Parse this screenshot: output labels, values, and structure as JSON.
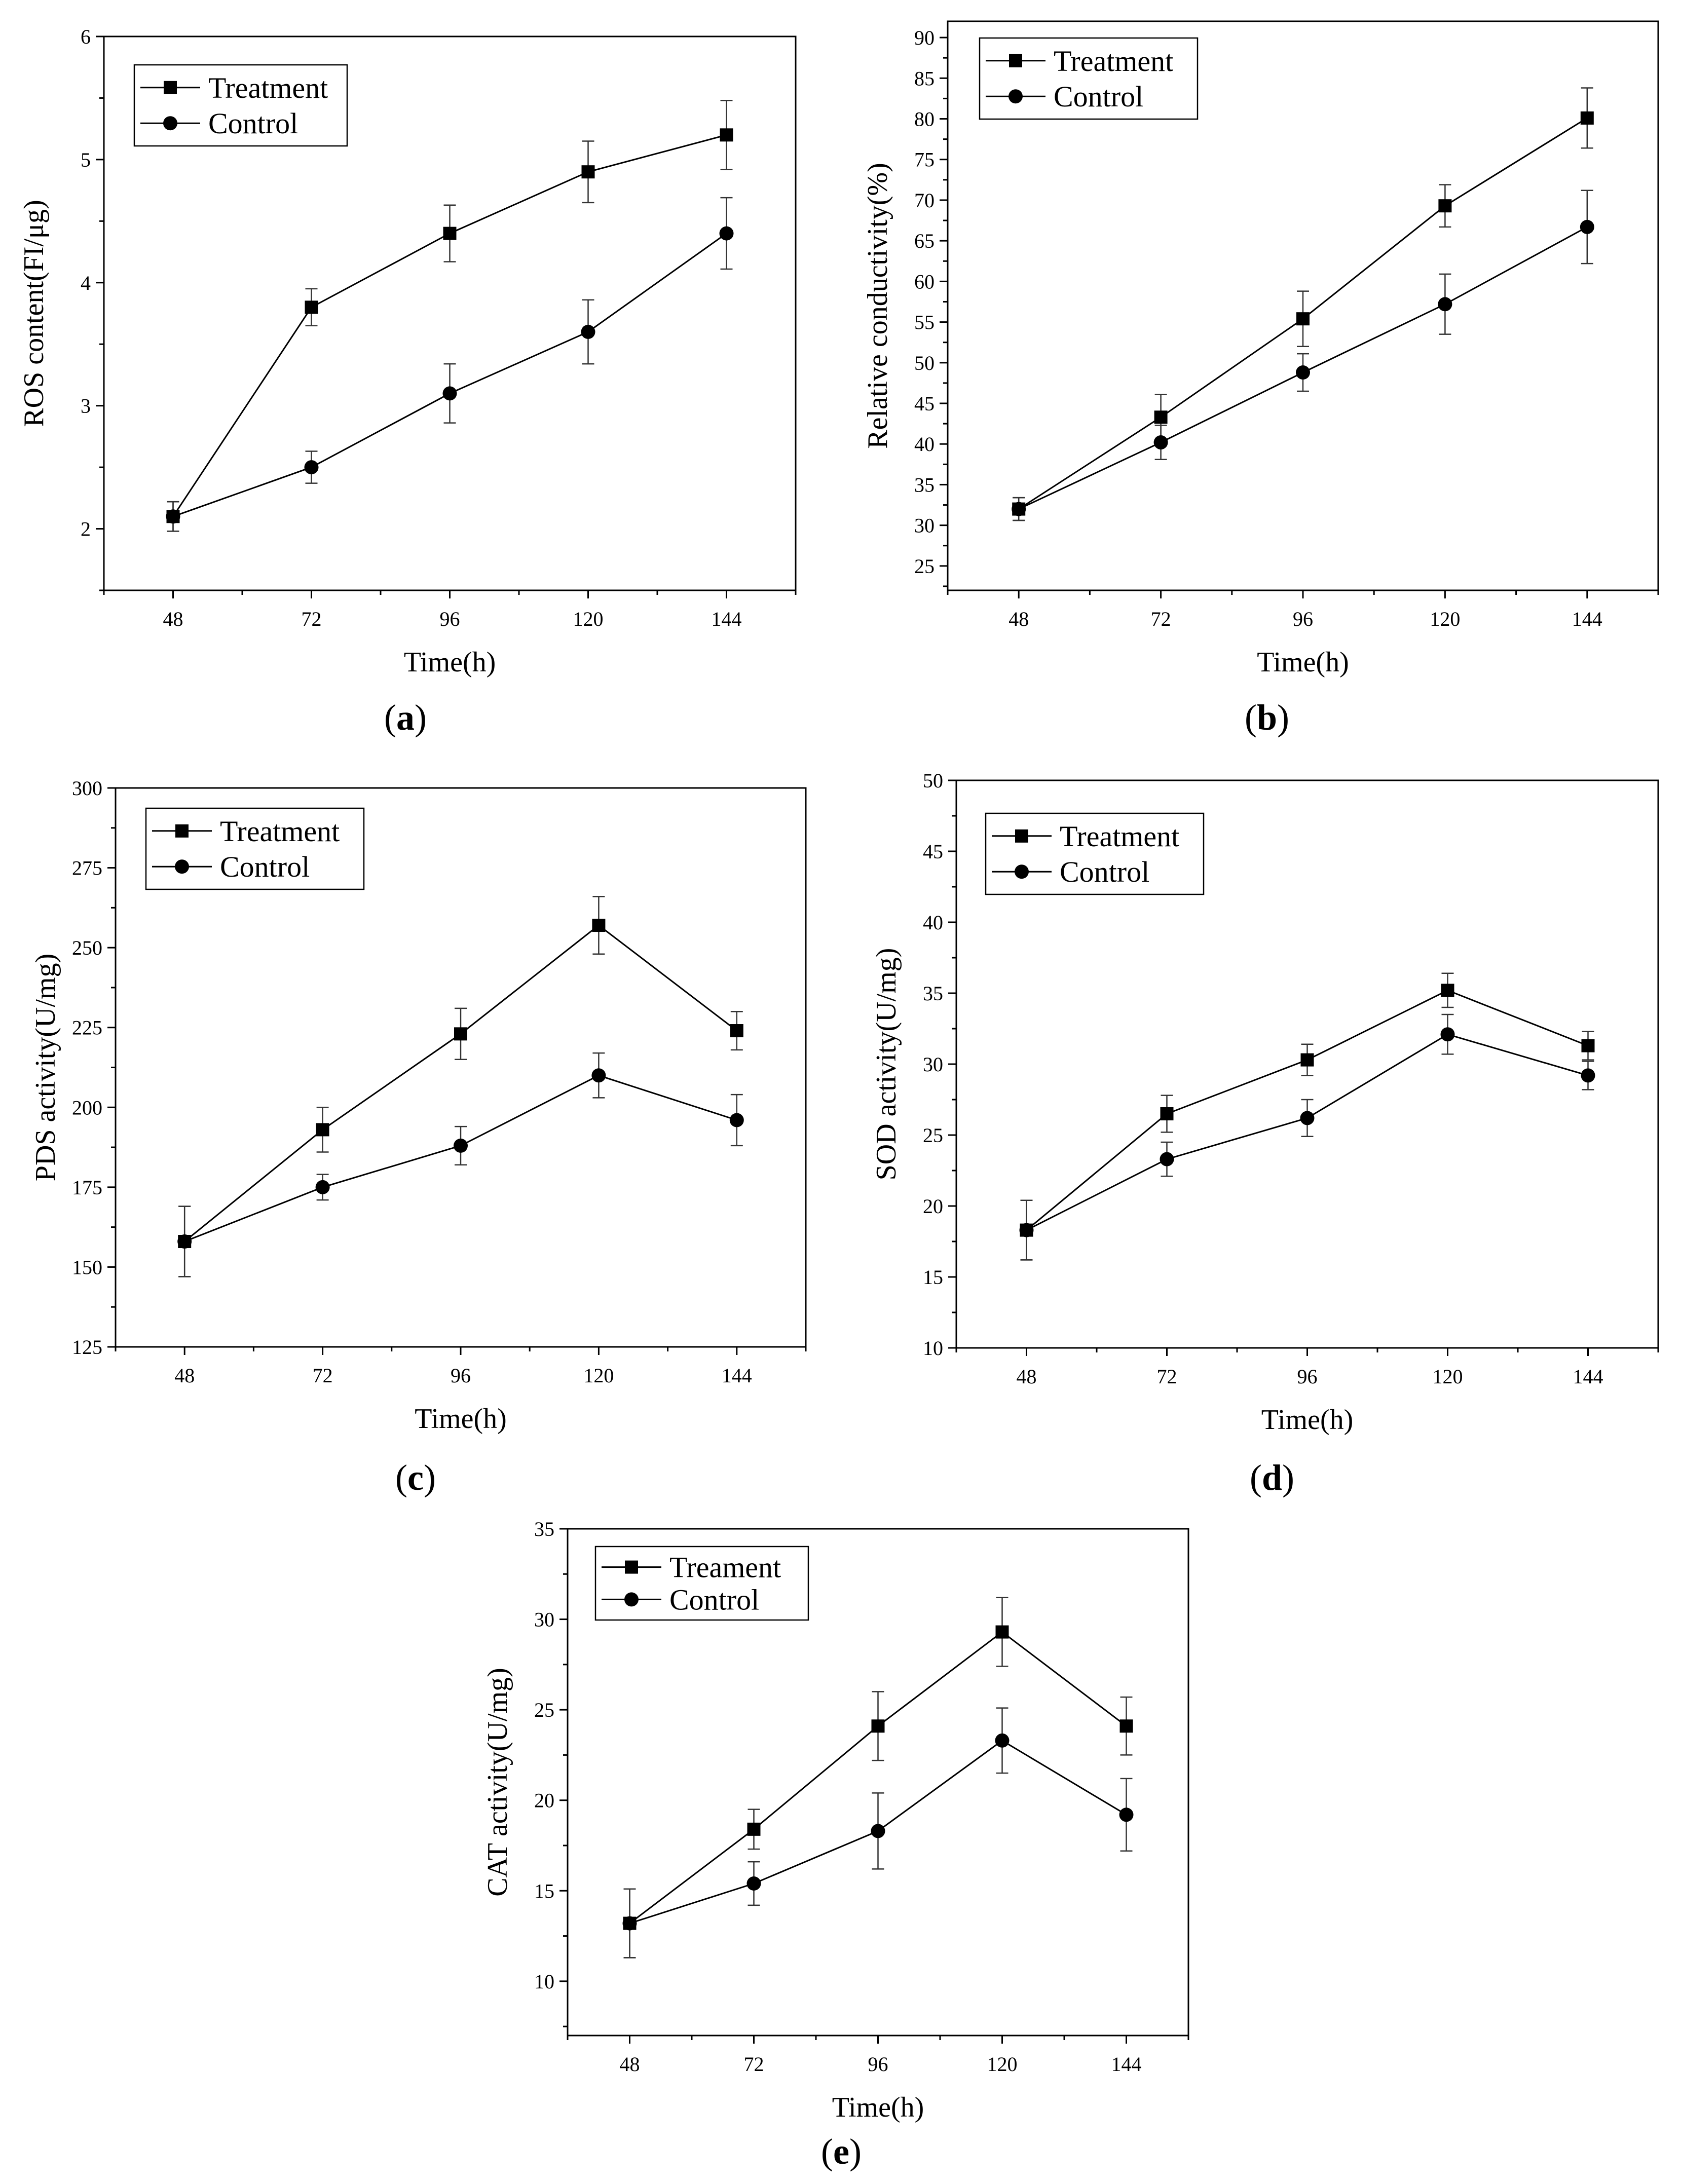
{
  "chart_data": [
    {
      "panel_label": "(a)",
      "type": "line",
      "x": [
        48,
        72,
        96,
        120,
        144
      ],
      "xlabel": "Time(h)",
      "ylabel": "ROS content(FI/μg)",
      "ylim": [
        1.5,
        6
      ],
      "yticks": [
        2,
        3,
        4,
        5,
        6
      ],
      "series": [
        {
          "name": "Treatment",
          "marker": "square",
          "values": [
            2.1,
            3.8,
            4.4,
            4.9,
            5.2
          ],
          "errors": [
            0.12,
            0.15,
            0.23,
            0.25,
            0.28
          ]
        },
        {
          "name": "Control",
          "marker": "circle",
          "values": [
            2.1,
            2.5,
            3.1,
            3.6,
            4.4
          ],
          "errors": [
            0.12,
            0.13,
            0.24,
            0.26,
            0.29
          ]
        }
      ],
      "legend": "top-left"
    },
    {
      "panel_label": "(b)",
      "type": "line",
      "x": [
        48,
        72,
        96,
        120,
        144
      ],
      "xlabel": "Time(h)",
      "ylabel": "Relative conductivity(%)",
      "ylim": [
        22,
        92
      ],
      "yticks": [
        25,
        30,
        35,
        40,
        45,
        50,
        55,
        60,
        65,
        70,
        75,
        80,
        85,
        90
      ],
      "series": [
        {
          "name": "Treatment",
          "marker": "square",
          "values": [
            32.0,
            43.3,
            55.4,
            69.3,
            80.1
          ],
          "errors": [
            1.4,
            2.8,
            3.4,
            2.6,
            3.7
          ]
        },
        {
          "name": "Control",
          "marker": "circle",
          "values": [
            32.0,
            40.2,
            48.8,
            57.2,
            66.7
          ],
          "errors": [
            1.4,
            2.1,
            2.3,
            3.7,
            4.5
          ]
        }
      ],
      "legend": "top-left"
    },
    {
      "panel_label": "(c)",
      "type": "line",
      "x": [
        48,
        72,
        96,
        120,
        144
      ],
      "xlabel": "Time(h)",
      "ylabel": "PDS activity(U/mg)",
      "ylim": [
        125,
        300
      ],
      "yticks": [
        125,
        150,
        175,
        200,
        225,
        250,
        275,
        300
      ],
      "series": [
        {
          "name": "Treatment",
          "marker": "square",
          "values": [
            158,
            193,
            223,
            257,
            224
          ],
          "errors": [
            11,
            7,
            8,
            9,
            6
          ]
        },
        {
          "name": "Control",
          "marker": "circle",
          "values": [
            158,
            175,
            188,
            210,
            196
          ],
          "errors": [
            11,
            4,
            6,
            7,
            8
          ]
        }
      ],
      "legend": "top-left"
    },
    {
      "panel_label": "(d)",
      "type": "line",
      "x": [
        48,
        72,
        96,
        120,
        144
      ],
      "xlabel": "Time(h)",
      "ylabel": "SOD activity(U/mg)",
      "ylim": [
        10,
        50
      ],
      "yticks": [
        10,
        15,
        20,
        25,
        30,
        35,
        40,
        45,
        50
      ],
      "series": [
        {
          "name": "Treatment",
          "marker": "square",
          "values": [
            18.3,
            26.5,
            30.3,
            35.2,
            31.3
          ],
          "errors": [
            2.1,
            1.3,
            1.1,
            1.2,
            1.0
          ]
        },
        {
          "name": "Control",
          "marker": "circle",
          "values": [
            18.3,
            23.3,
            26.2,
            32.1,
            29.2
          ],
          "errors": [
            2.1,
            1.2,
            1.3,
            1.4,
            1.0
          ]
        }
      ],
      "legend": "top-left"
    },
    {
      "panel_label": "(e)",
      "type": "line",
      "x": [
        48,
        72,
        96,
        120,
        144
      ],
      "xlabel": "Time(h)",
      "ylabel": "CAT activity(U/mg)",
      "ylim": [
        7,
        35
      ],
      "yticks": [
        10,
        15,
        20,
        25,
        30,
        35
      ],
      "series": [
        {
          "name": "Treament",
          "marker": "square",
          "values": [
            13.2,
            18.4,
            24.1,
            29.3,
            24.1
          ],
          "errors": [
            1.9,
            1.1,
            1.9,
            1.9,
            1.6
          ]
        },
        {
          "name": "Control",
          "marker": "circle",
          "values": [
            13.2,
            15.4,
            18.3,
            23.3,
            19.2
          ],
          "errors": [
            1.9,
            1.2,
            2.1,
            1.8,
            2.0
          ]
        }
      ],
      "legend": "top-left"
    }
  ]
}
